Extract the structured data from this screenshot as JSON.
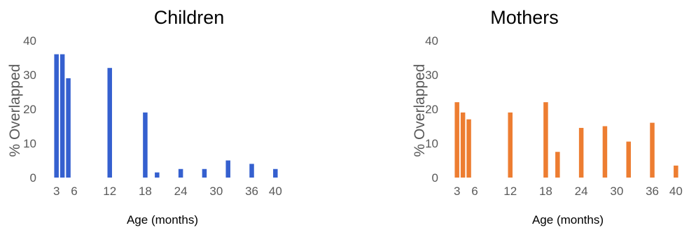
{
  "chart_data": [
    {
      "type": "bar",
      "title": "Children",
      "xlabel": "Age (months)",
      "ylabel": "% Overlapped",
      "ylim": [
        0,
        40
      ],
      "yticks": [
        0,
        10,
        20,
        30,
        40
      ],
      "xlim": [
        1.5,
        41.5
      ],
      "xticks": [
        3,
        6,
        12,
        18,
        24,
        30,
        36,
        40
      ],
      "grid": false,
      "color": "#3560cf",
      "x": [
        3,
        4,
        5,
        12,
        18,
        20,
        24,
        28,
        32,
        36,
        40
      ],
      "values": [
        36,
        36,
        29,
        32,
        19,
        1.5,
        2.5,
        2.5,
        5,
        4,
        2.5
      ]
    },
    {
      "type": "bar",
      "title": "Mothers",
      "xlabel": "Age (months)",
      "ylabel": "% Overlapped",
      "ylim": [
        0,
        40
      ],
      "yticks": [
        0,
        10,
        20,
        30,
        40
      ],
      "xlim": [
        1.5,
        41.5
      ],
      "xticks": [
        3,
        6,
        12,
        18,
        24,
        30,
        36,
        40
      ],
      "grid": false,
      "color": "#ed7d31",
      "x": [
        3,
        4,
        5,
        12,
        18,
        20,
        24,
        28,
        32,
        36,
        40
      ],
      "values": [
        22,
        19,
        17,
        19,
        22,
        7.5,
        14.5,
        15,
        10.5,
        16,
        3.5
      ]
    }
  ]
}
